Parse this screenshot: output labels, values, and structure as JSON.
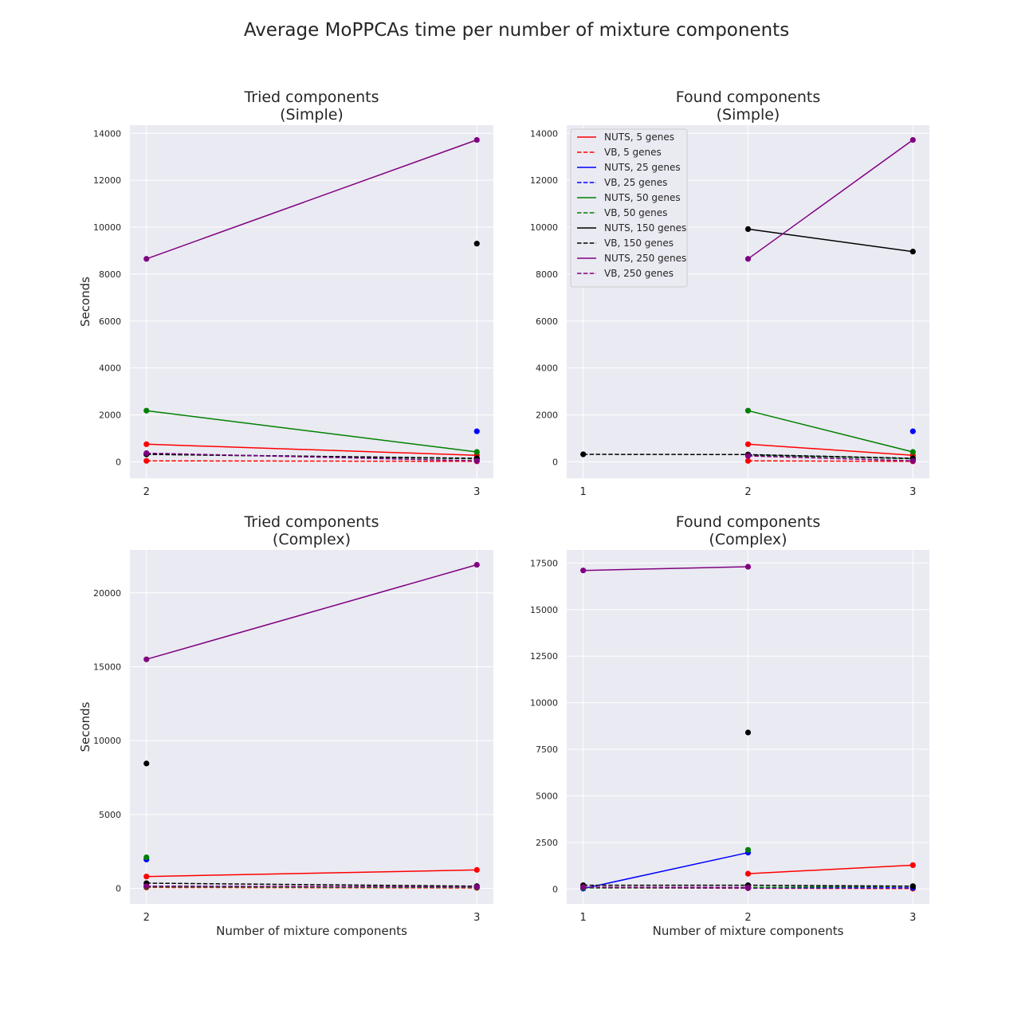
{
  "suptitle": "Average MoPPCAs time per number of mixture components",
  "colors": {
    "5": "#ff0000",
    "25": "#0000ff",
    "50": "#008000",
    "150": "#000000",
    "250": "#800080"
  },
  "legend": [
    {
      "label": "NUTS, 5 genes",
      "color": "#ff0000",
      "dash": false
    },
    {
      "label": "VB, 5 genes",
      "color": "#ff0000",
      "dash": true
    },
    {
      "label": "NUTS, 25 genes",
      "color": "#0000ff",
      "dash": false
    },
    {
      "label": "VB, 25 genes",
      "color": "#0000ff",
      "dash": true
    },
    {
      "label": "NUTS, 50 genes",
      "color": "#008000",
      "dash": false
    },
    {
      "label": "VB, 50 genes",
      "color": "#008000",
      "dash": true
    },
    {
      "label": "NUTS, 150 genes",
      "color": "#000000",
      "dash": false
    },
    {
      "label": "VB, 150 genes",
      "color": "#000000",
      "dash": true
    },
    {
      "label": "NUTS, 250 genes",
      "color": "#800080",
      "dash": false
    },
    {
      "label": "VB, 250 genes",
      "color": "#800080",
      "dash": true
    }
  ],
  "chart_data": [
    {
      "type": "line",
      "title": "Tried components\n(Simple)",
      "xlabel": "",
      "ylabel": "Seconds",
      "xlim": [
        1.95,
        3.05
      ],
      "ylim": [
        -700,
        14350
      ],
      "xticks": [
        2,
        3
      ],
      "yticks": [
        0,
        2000,
        4000,
        6000,
        8000,
        10000,
        12000,
        14000
      ],
      "legend": false,
      "series": [
        {
          "name": "NUTS, 5 genes",
          "color": "#ff0000",
          "dash": false,
          "points": [
            [
              2,
              750
            ],
            [
              3,
              280
            ]
          ]
        },
        {
          "name": "VB, 5 genes",
          "color": "#ff0000",
          "dash": true,
          "points": [
            [
              2,
              40
            ],
            [
              3,
              20
            ]
          ]
        },
        {
          "name": "NUTS, 25 genes",
          "color": "#0000ff",
          "dash": false,
          "points": [
            [
              3,
              1300
            ]
          ]
        },
        {
          "name": "VB, 25 genes",
          "color": "#0000ff",
          "dash": true,
          "points": [
            [
              2,
              330
            ],
            [
              3,
              140
            ]
          ]
        },
        {
          "name": "NUTS, 50 genes",
          "color": "#008000",
          "dash": false,
          "points": [
            [
              2,
              2180
            ],
            [
              3,
              420
            ]
          ]
        },
        {
          "name": "VB, 50 genes",
          "color": "#008000",
          "dash": true,
          "points": [
            [
              2,
              320
            ],
            [
              3,
              130
            ]
          ]
        },
        {
          "name": "NUTS, 150 genes",
          "color": "#000000",
          "dash": false,
          "points": [
            [
              3,
              9300
            ]
          ]
        },
        {
          "name": "VB, 150 genes",
          "color": "#000000",
          "dash": true,
          "points": [
            [
              2,
              320
            ],
            [
              3,
              150
            ]
          ]
        },
        {
          "name": "NUTS, 250 genes",
          "color": "#800080",
          "dash": false,
          "points": [
            [
              2,
              8650
            ],
            [
              3,
              13720
            ]
          ]
        },
        {
          "name": "VB, 250 genes",
          "color": "#800080",
          "dash": true,
          "points": [
            [
              2,
              370
            ],
            [
              3,
              40
            ]
          ]
        }
      ]
    },
    {
      "type": "line",
      "title": "Found components\n(Simple)",
      "xlabel": "",
      "ylabel": "",
      "xlim": [
        0.9,
        3.1
      ],
      "ylim": [
        -700,
        14350
      ],
      "xticks": [
        1,
        2,
        3
      ],
      "yticks": [
        0,
        2000,
        4000,
        6000,
        8000,
        10000,
        12000,
        14000
      ],
      "legend": true,
      "legend_loc": "upper left",
      "series": [
        {
          "name": "NUTS, 5 genes",
          "color": "#ff0000",
          "dash": false,
          "points": [
            [
              2,
              750
            ],
            [
              3,
              280
            ]
          ]
        },
        {
          "name": "VB, 5 genes",
          "color": "#ff0000",
          "dash": true,
          "points": [
            [
              2,
              40
            ],
            [
              3,
              20
            ]
          ]
        },
        {
          "name": "NUTS, 25 genes",
          "color": "#0000ff",
          "dash": false,
          "points": [
            [
              3,
              1300
            ]
          ]
        },
        {
          "name": "VB, 25 genes",
          "color": "#0000ff",
          "dash": true,
          "points": [
            [
              2,
              300
            ],
            [
              3,
              140
            ]
          ]
        },
        {
          "name": "NUTS, 50 genes",
          "color": "#008000",
          "dash": false,
          "points": [
            [
              2,
              2180
            ],
            [
              3,
              420
            ]
          ]
        },
        {
          "name": "VB, 50 genes",
          "color": "#008000",
          "dash": true,
          "points": [
            [
              2,
              290
            ],
            [
              3,
              130
            ]
          ]
        },
        {
          "name": "NUTS, 150 genes",
          "color": "#000000",
          "dash": false,
          "points": [
            [
              2,
              9920
            ],
            [
              3,
              8960
            ]
          ]
        },
        {
          "name": "VB, 150 genes",
          "color": "#000000",
          "dash": true,
          "points": [
            [
              1,
              320
            ],
            [
              2,
              310
            ],
            [
              3,
              150
            ]
          ]
        },
        {
          "name": "NUTS, 250 genes",
          "color": "#800080",
          "dash": false,
          "points": [
            [
              2,
              8650
            ],
            [
              3,
              13720
            ]
          ]
        },
        {
          "name": "VB, 250 genes",
          "color": "#800080",
          "dash": true,
          "points": [
            [
              2,
              250
            ],
            [
              3,
              40
            ]
          ]
        }
      ]
    },
    {
      "type": "line",
      "title": "Tried components\n(Complex)",
      "xlabel": "Number of mixture components",
      "ylabel": "Seconds",
      "xlim": [
        1.95,
        3.05
      ],
      "ylim": [
        -1050,
        22900
      ],
      "xticks": [
        2,
        3
      ],
      "yticks": [
        0,
        5000,
        10000,
        15000,
        20000
      ],
      "legend": false,
      "series": [
        {
          "name": "NUTS, 5 genes",
          "color": "#ff0000",
          "dash": false,
          "points": [
            [
              2,
              800
            ],
            [
              3,
              1250
            ]
          ]
        },
        {
          "name": "VB, 5 genes",
          "color": "#ff0000",
          "dash": true,
          "points": [
            [
              2,
              60
            ],
            [
              3,
              30
            ]
          ]
        },
        {
          "name": "NUTS, 25 genes",
          "color": "#0000ff",
          "dash": false,
          "points": [
            [
              2,
              1950
            ]
          ]
        },
        {
          "name": "VB, 25 genes",
          "color": "#0000ff",
          "dash": true,
          "points": [
            [
              2,
              150
            ],
            [
              3,
              80
            ]
          ]
        },
        {
          "name": "NUTS, 50 genes",
          "color": "#008000",
          "dash": false,
          "points": [
            [
              2,
              2100
            ]
          ]
        },
        {
          "name": "VB, 50 genes",
          "color": "#008000",
          "dash": true,
          "points": [
            [
              2,
              100
            ],
            [
              3,
              60
            ]
          ]
        },
        {
          "name": "NUTS, 150 genes",
          "color": "#000000",
          "dash": false,
          "points": [
            [
              2,
              8450
            ]
          ]
        },
        {
          "name": "VB, 150 genes",
          "color": "#000000",
          "dash": true,
          "points": [
            [
              2,
              350
            ],
            [
              3,
              150
            ]
          ]
        },
        {
          "name": "NUTS, 250 genes",
          "color": "#800080",
          "dash": false,
          "points": [
            [
              2,
              15500
            ],
            [
              3,
              21900
            ]
          ]
        },
        {
          "name": "VB, 250 genes",
          "color": "#800080",
          "dash": true,
          "points": [
            [
              2,
              150
            ],
            [
              3,
              100
            ]
          ]
        }
      ]
    },
    {
      "type": "line",
      "title": "Found components\n(Complex)",
      "xlabel": "Number of mixture components",
      "ylabel": "",
      "xlim": [
        0.9,
        3.1
      ],
      "ylim": [
        -800,
        18200
      ],
      "xticks": [
        1,
        2,
        3
      ],
      "yticks": [
        0,
        2500,
        5000,
        7500,
        10000,
        12500,
        15000,
        17500
      ],
      "legend": false,
      "series": [
        {
          "name": "NUTS, 5 genes",
          "color": "#ff0000",
          "dash": false,
          "points": [
            [
              2,
              820
            ],
            [
              3,
              1280
            ]
          ]
        },
        {
          "name": "VB, 5 genes",
          "color": "#ff0000",
          "dash": true,
          "points": [
            [
              1,
              60
            ],
            [
              2,
              40
            ],
            [
              3,
              20
            ]
          ]
        },
        {
          "name": "NUTS, 25 genes",
          "color": "#0000ff",
          "dash": false,
          "points": [
            [
              1,
              20
            ],
            [
              2,
              1950
            ]
          ]
        },
        {
          "name": "VB, 25 genes",
          "color": "#0000ff",
          "dash": true,
          "points": [
            [
              1,
              60
            ],
            [
              2,
              60
            ],
            [
              3,
              60
            ]
          ]
        },
        {
          "name": "NUTS, 50 genes",
          "color": "#008000",
          "dash": false,
          "points": [
            [
              2,
              2100
            ]
          ]
        },
        {
          "name": "VB, 50 genes",
          "color": "#008000",
          "dash": true,
          "points": [
            [
              1,
              60
            ],
            [
              2,
              80
            ],
            [
              3,
              150
            ]
          ]
        },
        {
          "name": "NUTS, 150 genes",
          "color": "#000000",
          "dash": false,
          "points": [
            [
              2,
              8400
            ]
          ]
        },
        {
          "name": "VB, 150 genes",
          "color": "#000000",
          "dash": true,
          "points": [
            [
              1,
              200
            ],
            [
              2,
              200
            ],
            [
              3,
              150
            ]
          ]
        },
        {
          "name": "NUTS, 250 genes",
          "color": "#800080",
          "dash": false,
          "points": [
            [
              1,
              17100
            ],
            [
              2,
              17300
            ]
          ]
        },
        {
          "name": "VB, 250 genes",
          "color": "#800080",
          "dash": true,
          "points": [
            [
              1,
              100
            ],
            [
              2,
              80
            ]
          ]
        }
      ]
    }
  ]
}
